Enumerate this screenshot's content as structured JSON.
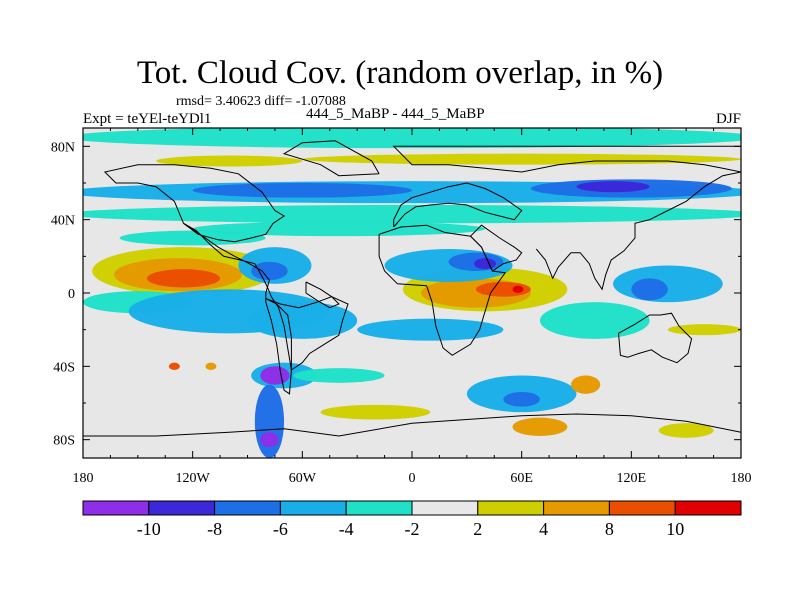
{
  "header": {
    "title": "Tot. Cloud Cov. (random overlap, in %)",
    "stats": "rmsd= 3.40623  diff= -1.07088",
    "expt": "Expt = teYEl-teYDl1",
    "case_label": "444_5_MaBP - 444_5_MaBP",
    "season": "DJF"
  },
  "map": {
    "x_ticks": [
      "180",
      "120W",
      "60W",
      "0",
      "60E",
      "120E",
      "180"
    ],
    "y_ticks": [
      "80N",
      "40N",
      "0",
      "40S",
      "80S"
    ],
    "lon_range": [
      -180,
      180
    ],
    "lat_range": [
      -90,
      90
    ],
    "background_color": "#e7e7e7",
    "land_outline_color": "#000000"
  },
  "legend": {
    "levels": [
      "-10",
      "-8",
      "-6",
      "-4",
      "-2",
      "2",
      "4",
      "8",
      "10"
    ],
    "colors": [
      "#8f2ee8",
      "#3c28d8",
      "#1e6ee6",
      "#19aee8",
      "#20e0c8",
      "#e8e8e8",
      "#cfcf00",
      "#e49a00",
      "#ea4f00",
      "#e00000"
    ]
  },
  "chart_data": {
    "type": "heatmap",
    "title": "Tot. Cloud Cov. (random overlap, in %)",
    "xlabel": "",
    "ylabel": "",
    "x_ticks": [
      "180",
      "120W",
      "60W",
      "0",
      "60E",
      "120E",
      "180"
    ],
    "y_ticks": [
      "80N",
      "40N",
      "0",
      "40S",
      "80S"
    ],
    "xlim": [
      -180,
      180
    ],
    "ylim": [
      -90,
      90
    ],
    "contour_levels": [
      -10,
      -8,
      -6,
      -4,
      -2,
      2,
      4,
      8,
      10
    ],
    "rmsd": 3.40623,
    "diff": -1.07088,
    "regions": [
      {
        "lon": -125,
        "lat": 12,
        "rx": 50,
        "ry": 13,
        "level": 1
      },
      {
        "lon": -128,
        "lat": 10,
        "rx": 35,
        "ry": 9,
        "level": 2
      },
      {
        "lon": -125,
        "lat": 8,
        "rx": 20,
        "ry": 5,
        "level": 3
      },
      {
        "lon": 40,
        "lat": 2,
        "rx": 45,
        "ry": 12,
        "level": 1
      },
      {
        "lon": 35,
        "lat": 0,
        "rx": 30,
        "ry": 8,
        "level": 2
      },
      {
        "lon": 50,
        "lat": 2,
        "rx": 15,
        "ry": 4,
        "level": 3
      },
      {
        "lon": 58,
        "lat": 2,
        "rx": 3,
        "ry": 2,
        "level": 4
      },
      {
        "lon": 60,
        "lat": 73,
        "rx": 120,
        "ry": 3,
        "level": 1
      },
      {
        "lon": -100,
        "lat": 72,
        "rx": 40,
        "ry": 3,
        "level": 1
      },
      {
        "lon": 0,
        "lat": 55,
        "rx": 190,
        "ry": 6,
        "level": -2
      },
      {
        "lon": 120,
        "lat": 57,
        "rx": 55,
        "ry": 5,
        "level": -3
      },
      {
        "lon": 110,
        "lat": 58,
        "rx": 20,
        "ry": 3,
        "level": -4
      },
      {
        "lon": -60,
        "lat": 56,
        "rx": 60,
        "ry": 4,
        "level": -3
      },
      {
        "lon": 0,
        "lat": 85,
        "rx": 190,
        "ry": 6,
        "level": -1
      },
      {
        "lon": 0,
        "lat": 43,
        "rx": 190,
        "ry": 5,
        "level": -1
      },
      {
        "lon": -40,
        "lat": 35,
        "rx": 80,
        "ry": 4,
        "level": -1
      },
      {
        "lon": -120,
        "lat": 30,
        "rx": 40,
        "ry": 4,
        "level": -1
      },
      {
        "lon": -75,
        "lat": 15,
        "rx": 20,
        "ry": 10,
        "level": -2
      },
      {
        "lon": -78,
        "lat": 12,
        "rx": 10,
        "ry": 5,
        "level": -3
      },
      {
        "lon": -150,
        "lat": -5,
        "rx": 30,
        "ry": 6,
        "level": -1
      },
      {
        "lon": -100,
        "lat": -10,
        "rx": 55,
        "ry": 12,
        "level": -2
      },
      {
        "lon": -60,
        "lat": -15,
        "rx": 30,
        "ry": 10,
        "level": -2
      },
      {
        "lon": 20,
        "lat": 15,
        "rx": 35,
        "ry": 9,
        "level": -2
      },
      {
        "lon": 35,
        "lat": 17,
        "rx": 15,
        "ry": 5,
        "level": -3
      },
      {
        "lon": 40,
        "lat": 16,
        "rx": 6,
        "ry": 3,
        "level": -4
      },
      {
        "lon": 10,
        "lat": -20,
        "rx": 40,
        "ry": 6,
        "level": -2
      },
      {
        "lon": 100,
        "lat": -15,
        "rx": 30,
        "ry": 10,
        "level": -1
      },
      {
        "lon": 140,
        "lat": 5,
        "rx": 30,
        "ry": 10,
        "level": -2
      },
      {
        "lon": 130,
        "lat": 2,
        "rx": 10,
        "ry": 6,
        "level": -3
      },
      {
        "lon": 160,
        "lat": -20,
        "rx": 20,
        "ry": 3,
        "level": 1
      },
      {
        "lon": -70,
        "lat": -45,
        "rx": 18,
        "ry": 7,
        "level": -2
      },
      {
        "lon": -75,
        "lat": -45,
        "rx": 8,
        "ry": 5,
        "level": -5
      },
      {
        "lon": -78,
        "lat": -70,
        "rx": 8,
        "ry": 20,
        "level": -3
      },
      {
        "lon": -78,
        "lat": -80,
        "rx": 5,
        "ry": 4,
        "level": -5
      },
      {
        "lon": -40,
        "lat": -45,
        "rx": 25,
        "ry": 4,
        "level": -1
      },
      {
        "lon": -20,
        "lat": -65,
        "rx": 30,
        "ry": 4,
        "level": 1
      },
      {
        "lon": 60,
        "lat": -55,
        "rx": 30,
        "ry": 10,
        "level": -2
      },
      {
        "lon": 60,
        "lat": -58,
        "rx": 10,
        "ry": 4,
        "level": -3
      },
      {
        "lon": 70,
        "lat": -73,
        "rx": 15,
        "ry": 5,
        "level": 2
      },
      {
        "lon": 95,
        "lat": -50,
        "rx": 8,
        "ry": 5,
        "level": 2
      },
      {
        "lon": 150,
        "lat": -75,
        "rx": 15,
        "ry": 4,
        "level": 1
      },
      {
        "lon": -130,
        "lat": -40,
        "rx": 3,
        "ry": 2,
        "level": 3
      },
      {
        "lon": -110,
        "lat": -40,
        "rx": 3,
        "ry": 2,
        "level": 2
      }
    ]
  }
}
